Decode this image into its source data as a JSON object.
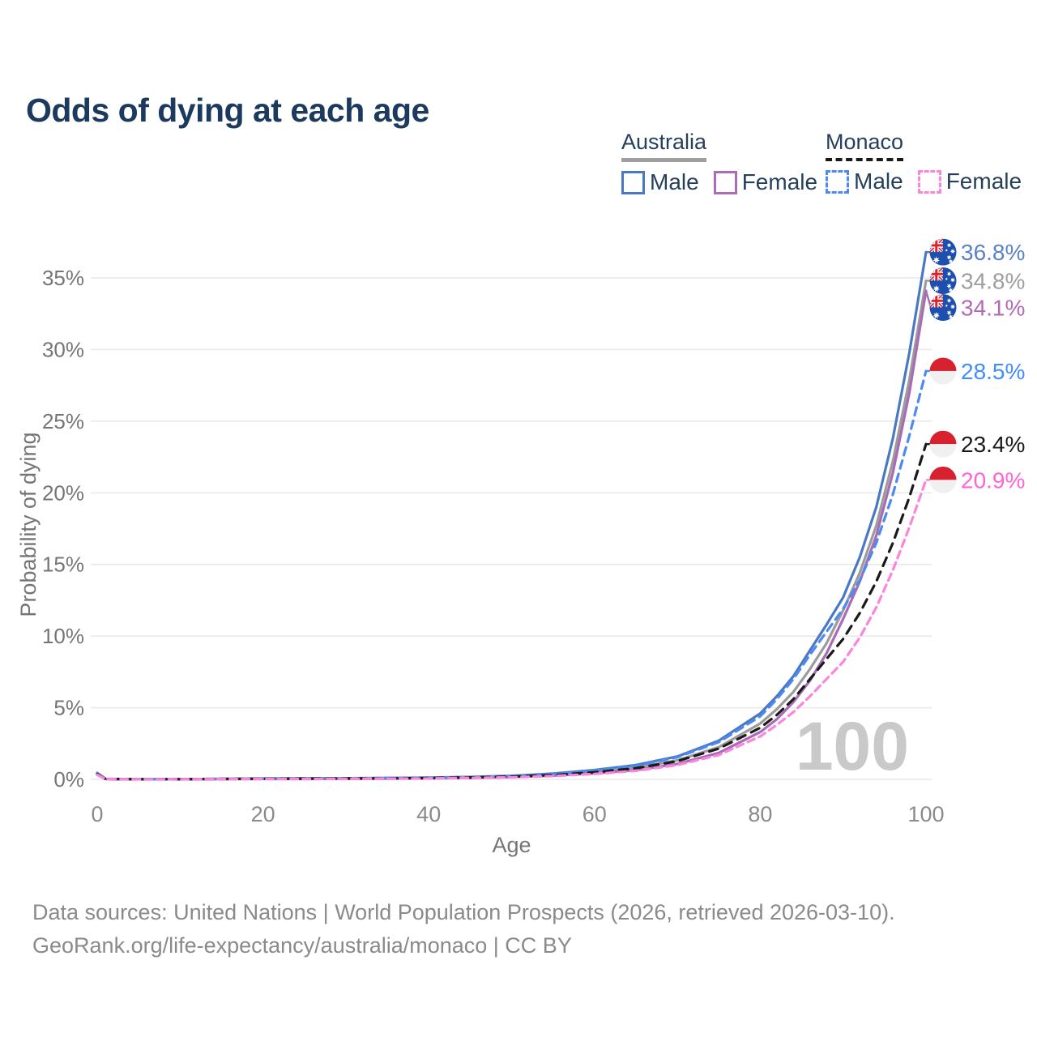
{
  "title": "Odds of dying at each age",
  "legend": {
    "groups": [
      {
        "country": "Australia",
        "underline_style": "solid",
        "underline_color": "#9e9e9e",
        "items": [
          {
            "label": "Male",
            "color": "#4b79c1",
            "dashed": false
          },
          {
            "label": "Female",
            "color": "#ad6cb5",
            "dashed": false
          }
        ]
      },
      {
        "country": "Monaco",
        "underline_style": "dashed",
        "underline_color": "#1a1a1a",
        "items": [
          {
            "label": "Male",
            "color": "#4a8af2",
            "dashed": true
          },
          {
            "label": "Female",
            "color": "#fa86dc",
            "dashed": true
          }
        ]
      }
    ]
  },
  "chart_data": {
    "type": "line",
    "title": "Odds of dying at each age",
    "xlabel": "Age",
    "ylabel": "Probability of dying",
    "xlim": [
      0,
      100
    ],
    "ylim_pct": [
      0,
      35
    ],
    "x_ticks": [
      0,
      20,
      40,
      60,
      80,
      100
    ],
    "y_ticks": [
      "0%",
      "5%",
      "10%",
      "15%",
      "20%",
      "25%",
      "30%",
      "35%"
    ],
    "grid": true,
    "legend_position": "top-right",
    "annotation": "100",
    "x": [
      0,
      1,
      5,
      10,
      15,
      20,
      25,
      30,
      35,
      40,
      45,
      50,
      55,
      60,
      65,
      70,
      75,
      80,
      82,
      84,
      86,
      88,
      90,
      92,
      94,
      96,
      98,
      100
    ],
    "series": [
      {
        "name": "Australia Male",
        "country": "Australia",
        "flag": "australia",
        "color": "#4b79c1",
        "dash": null,
        "end_label": "36.8%",
        "end_value": 36.8,
        "label_color": "#5b82c6",
        "values": [
          0.45,
          0.04,
          0.01,
          0.01,
          0.04,
          0.06,
          0.07,
          0.08,
          0.1,
          0.12,
          0.17,
          0.25,
          0.4,
          0.65,
          1.0,
          1.6,
          2.7,
          4.6,
          5.8,
          7.2,
          9.0,
          10.8,
          12.7,
          15.5,
          19.0,
          23.8,
          29.8,
          36.8
        ]
      },
      {
        "name": "Australia Both sexes",
        "country": "Australia",
        "flag": "australia",
        "color": "#9c9c9c",
        "dash": null,
        "end_label": "34.8%",
        "end_value": 34.8,
        "label_color": "#9e9e9e",
        "values": [
          0.42,
          0.03,
          0.01,
          0.01,
          0.03,
          0.05,
          0.06,
          0.07,
          0.08,
          0.1,
          0.14,
          0.21,
          0.33,
          0.53,
          0.82,
          1.33,
          2.25,
          3.9,
          4.9,
          6.1,
          7.7,
          9.5,
          11.8,
          14.4,
          17.7,
          22.2,
          27.9,
          34.8
        ]
      },
      {
        "name": "Australia Female",
        "country": "Australia",
        "flag": "australia",
        "color": "#a96bb5",
        "dash": null,
        "end_label": "34.1%",
        "end_value": 34.1,
        "label_color": "#b16ab5",
        "values": [
          0.38,
          0.03,
          0.01,
          0.01,
          0.02,
          0.03,
          0.03,
          0.04,
          0.05,
          0.07,
          0.11,
          0.16,
          0.26,
          0.42,
          0.65,
          1.08,
          1.85,
          3.3,
          4.2,
          5.4,
          6.9,
          8.8,
          11.2,
          13.8,
          17.0,
          21.4,
          27.0,
          34.1
        ]
      },
      {
        "name": "Monaco Male",
        "country": "Monaco",
        "flag": "monaco",
        "color": "#4a8af2",
        "dash": "10 7",
        "end_label": "28.5%",
        "end_value": 28.5,
        "label_color": "#3f8efc",
        "values": [
          0.4,
          0.03,
          0.01,
          0.01,
          0.04,
          0.05,
          0.06,
          0.07,
          0.09,
          0.11,
          0.16,
          0.24,
          0.38,
          0.62,
          0.95,
          1.55,
          2.6,
          4.4,
          5.6,
          7.0,
          8.7,
          10.3,
          11.9,
          13.9,
          16.5,
          19.9,
          24.0,
          28.5
        ]
      },
      {
        "name": "Monaco Both sexes",
        "country": "Monaco",
        "flag": "monaco",
        "color": "#1a1a1a",
        "dash": "11 8",
        "end_label": "23.4%",
        "end_value": 23.4,
        "label_color": "#1a1a1a",
        "values": [
          0.36,
          0.03,
          0.01,
          0.01,
          0.03,
          0.04,
          0.05,
          0.06,
          0.07,
          0.09,
          0.13,
          0.19,
          0.3,
          0.5,
          0.78,
          1.27,
          2.15,
          3.6,
          4.5,
          5.6,
          7.0,
          8.4,
          9.8,
          11.6,
          13.8,
          16.5,
          19.7,
          23.4
        ]
      },
      {
        "name": "Monaco Female",
        "country": "Monaco",
        "flag": "monaco",
        "color": "#fa86dc",
        "dash": "9 6",
        "end_label": "20.9%",
        "end_value": 20.9,
        "label_color": "#ff64d5",
        "values": [
          0.32,
          0.02,
          0.01,
          0.01,
          0.02,
          0.03,
          0.03,
          0.04,
          0.05,
          0.06,
          0.1,
          0.14,
          0.23,
          0.38,
          0.6,
          1.0,
          1.7,
          3.0,
          3.8,
          4.7,
          5.8,
          7.0,
          8.2,
          9.9,
          12.0,
          14.6,
          17.6,
          20.9
        ]
      }
    ],
    "flag_colors": {
      "australia_blue": "#1d4fae",
      "jack_red": "#d8252f",
      "monaco_red": "#d7212e",
      "monaco_white": "#f0f0f1"
    }
  },
  "footer": {
    "line1": "Data sources: United Nations | World Population Prospects (2026, retrieved 2026-03-10).",
    "line2": "GeoRank.org/life-expectancy/australia/monaco | CC BY"
  }
}
